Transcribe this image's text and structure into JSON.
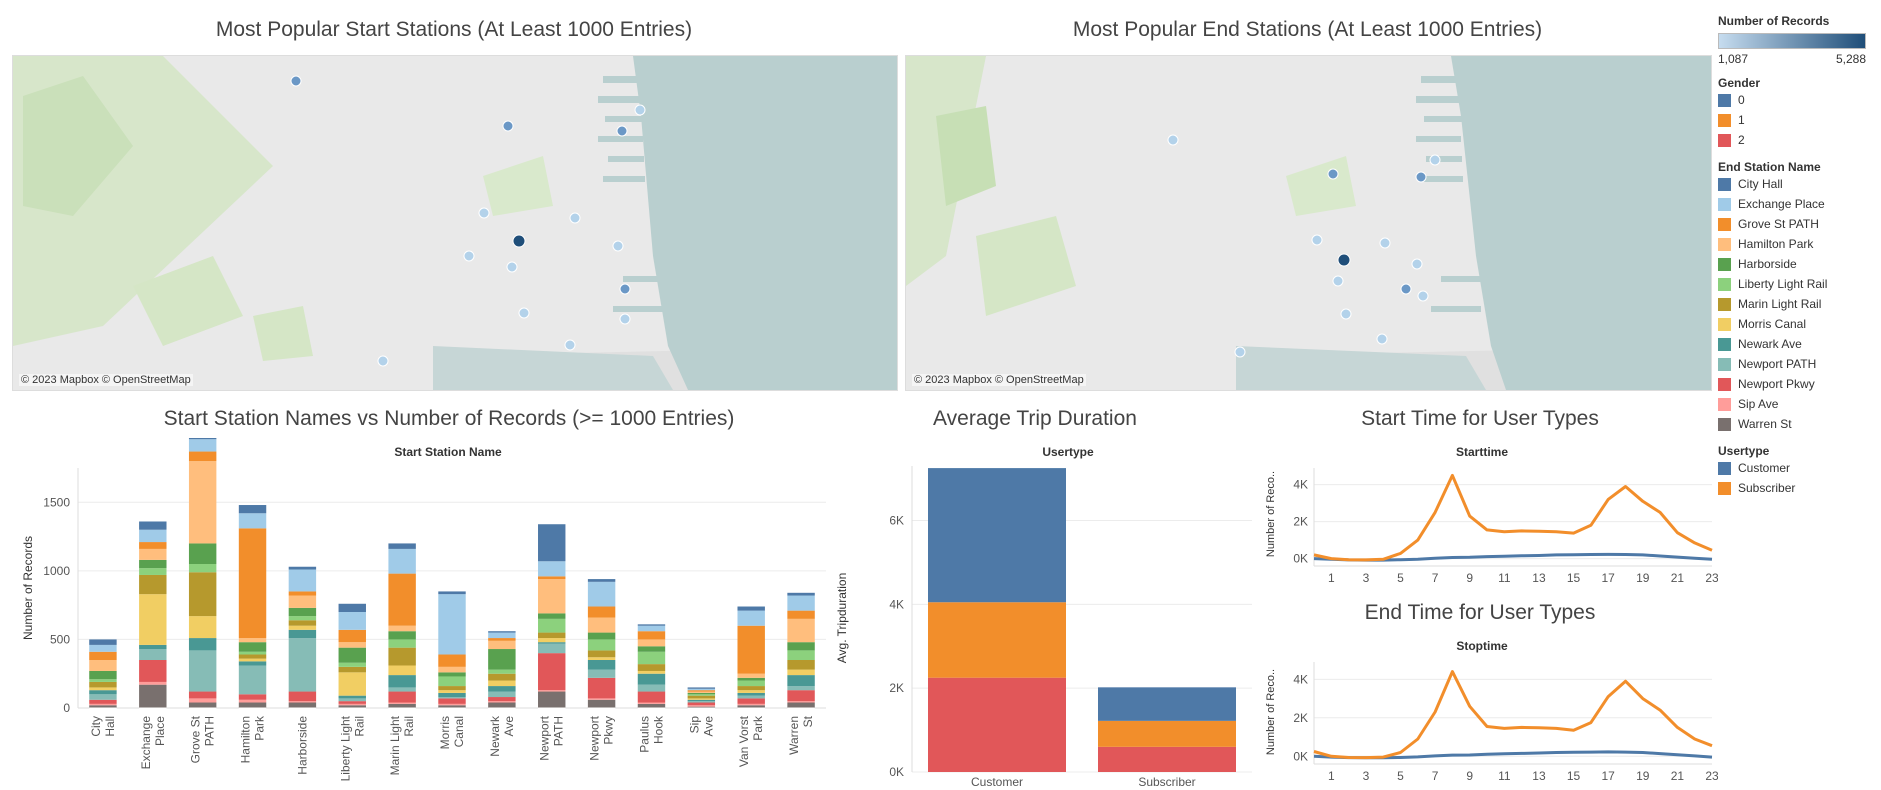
{
  "titles": {
    "start_map": "Most Popular Start Stations (At Least 1000  Entries)",
    "end_map": "Most Popular End Stations (At Least 1000  Entries)",
    "bar": "Start Station Names vs Number of Records (>= 1000 Entries)",
    "duration": "Average Trip Duration",
    "start_time": "Start Time for User Types",
    "end_time": "End Time for User Types"
  },
  "map_credit": "© 2023 Mapbox © OpenStreetMap",
  "legend": {
    "records_title": "Number of Records",
    "records_min": "1,087",
    "records_max": "5,288",
    "gender_title": "Gender",
    "gender": [
      {
        "label": "0",
        "color": "#4e79a7"
      },
      {
        "label": "1",
        "color": "#f28e2b"
      },
      {
        "label": "2",
        "color": "#e15759"
      }
    ],
    "station_title": "End Station Name",
    "stations": [
      {
        "label": "City Hall",
        "color": "#4e79a7"
      },
      {
        "label": "Exchange Place",
        "color": "#a0cbe8"
      },
      {
        "label": "Grove St PATH",
        "color": "#f28e2b"
      },
      {
        "label": "Hamilton Park",
        "color": "#ffbe7d"
      },
      {
        "label": "Harborside",
        "color": "#59a14f"
      },
      {
        "label": "Liberty Light Rail",
        "color": "#8cd17d"
      },
      {
        "label": "Marin Light Rail",
        "color": "#b6992d"
      },
      {
        "label": "Morris Canal",
        "color": "#f1ce63"
      },
      {
        "label": "Newark Ave",
        "color": "#499894"
      },
      {
        "label": "Newport PATH",
        "color": "#86bcb6"
      },
      {
        "label": "Newport Pkwy",
        "color": "#e15759"
      },
      {
        "label": "Sip Ave",
        "color": "#ff9d9a"
      },
      {
        "label": "Warren St",
        "color": "#79706e"
      }
    ],
    "usertype_title": "Usertype",
    "usertypes": [
      {
        "label": "Customer",
        "color": "#4e79a7"
      },
      {
        "label": "Subscriber",
        "color": "#f28e2b"
      }
    ]
  },
  "chart_data": [
    {
      "type": "map",
      "title": "Most Popular Start Stations (At Least 1000  Entries)",
      "marker_size_measure": "Number of Records"
    },
    {
      "type": "map",
      "title": "Most Popular End Stations (At Least 1000  Entries)",
      "marker_size_measure": "Number of Records"
    },
    {
      "type": "bar",
      "stacked": true,
      "title": "Start Station Names vs Number of Records (>= 1000 Entries)",
      "header": "Start Station Name",
      "ylabel": "Number of Records",
      "ylim": [
        0,
        1750
      ],
      "yticks": [
        0,
        500,
        1000,
        1500
      ],
      "categories": [
        "City Hall",
        "Exchange Place",
        "Grove St PATH",
        "Hamilton Park",
        "Harborside",
        "Liberty Light Rail",
        "Marin Light Rail",
        "Morris Canal",
        "Newark Ave",
        "Newport PATH",
        "Newport Pkwy",
        "Paulus Hook",
        "Sip Ave",
        "Van Vorst Park",
        "Warren St"
      ],
      "segment_order": [
        "Warren St",
        "Sip Ave",
        "Newport Pkwy",
        "Newport PATH",
        "Newark Ave",
        "Morris Canal",
        "Marin Light Rail",
        "Liberty Light Rail",
        "Harborside",
        "Hamilton Park",
        "Grove St PATH",
        "Exchange Place",
        "City Hall"
      ],
      "stacks": [
        [
          20,
          10,
          30,
          40,
          30,
          20,
          40,
          20,
          60,
          80,
          60,
          50,
          40
        ],
        [
          170,
          20,
          160,
          80,
          30,
          370,
          140,
          50,
          60,
          80,
          50,
          90,
          60
        ],
        [
          40,
          30,
          50,
          300,
          90,
          160,
          320,
          60,
          150,
          600,
          70,
          90,
          120
        ],
        [
          40,
          20,
          40,
          210,
          30,
          20,
          30,
          20,
          70,
          30,
          800,
          110,
          60
        ],
        [
          40,
          10,
          70,
          390,
          60,
          30,
          40,
          30,
          60,
          90,
          30,
          160,
          20
        ],
        [
          20,
          10,
          20,
          20,
          20,
          170,
          40,
          30,
          110,
          40,
          90,
          130,
          60
        ],
        [
          30,
          10,
          80,
          30,
          90,
          70,
          130,
          60,
          60,
          40,
          380,
          180,
          40
        ],
        [
          20,
          10,
          40,
          10,
          30,
          20,
          30,
          70,
          30,
          40,
          90,
          440,
          20
        ],
        [
          40,
          10,
          30,
          40,
          40,
          40,
          50,
          30,
          150,
          60,
          20,
          40,
          10
        ],
        [
          120,
          10,
          270,
          70,
          10,
          30,
          40,
          100,
          40,
          250,
          20,
          110,
          270
        ],
        [
          60,
          10,
          150,
          60,
          70,
          20,
          50,
          80,
          50,
          110,
          80,
          180,
          20
        ],
        [
          30,
          10,
          80,
          50,
          80,
          20,
          50,
          90,
          40,
          50,
          60,
          40,
          10
        ],
        [
          10,
          10,
          20,
          10,
          10,
          10,
          20,
          10,
          10,
          10,
          10,
          10,
          10
        ],
        [
          20,
          10,
          40,
          20,
          20,
          20,
          30,
          40,
          20,
          30,
          350,
          110,
          30
        ],
        [
          40,
          10,
          80,
          30,
          80,
          40,
          70,
          70,
          60,
          170,
          60,
          110,
          20
        ]
      ]
    },
    {
      "type": "bar",
      "stacked": true,
      "title": "Average Trip Duration",
      "header": "Usertype",
      "ylabel": "Avg. Tripduration",
      "ylim": [
        0,
        7300
      ],
      "yticks": [
        0,
        2000,
        4000,
        6000
      ],
      "ytick_labels": [
        "0K",
        "2K",
        "4K",
        "6K"
      ],
      "categories": [
        "Customer",
        "Subscriber"
      ],
      "series": [
        {
          "name": "2",
          "values": [
            2250,
            600
          ]
        },
        {
          "name": "1",
          "values": [
            1800,
            620
          ]
        },
        {
          "name": "0",
          "values": [
            3200,
            800
          ]
        }
      ]
    },
    {
      "type": "line",
      "title": "Start Time for User Types",
      "header": "Starttime",
      "ylabel": "Number of Reco..",
      "ylim": [
        -400,
        4900
      ],
      "yticks": [
        0,
        2000,
        4000
      ],
      "ytick_labels": [
        "0K",
        "2K",
        "4K"
      ],
      "xticks": [
        1,
        3,
        5,
        7,
        9,
        11,
        13,
        15,
        17,
        19,
        21,
        23
      ],
      "x": [
        0,
        1,
        2,
        3,
        4,
        5,
        6,
        7,
        8,
        9,
        10,
        11,
        12,
        13,
        14,
        15,
        16,
        17,
        18,
        19,
        20,
        21,
        22,
        23
      ],
      "series": [
        {
          "name": "Customer",
          "values": [
            0,
            -40,
            -70,
            -80,
            -80,
            -60,
            -30,
            20,
            60,
            70,
            110,
            130,
            150,
            170,
            200,
            210,
            220,
            230,
            220,
            200,
            140,
            80,
            20,
            -40
          ]
        },
        {
          "name": "Subscriber",
          "values": [
            200,
            0,
            -60,
            -70,
            -40,
            280,
            1000,
            2500,
            4500,
            2300,
            1550,
            1450,
            1500,
            1480,
            1450,
            1380,
            1800,
            3200,
            3900,
            3100,
            2500,
            1400,
            850,
            450
          ]
        }
      ]
    },
    {
      "type": "line",
      "title": "End Time for User Types",
      "header": "Stoptime",
      "ylabel": "Number of Reco..",
      "ylim": [
        -400,
        4900
      ],
      "yticks": [
        0,
        2000,
        4000
      ],
      "ytick_labels": [
        "0K",
        "2K",
        "4K"
      ],
      "xticks": [
        1,
        3,
        5,
        7,
        9,
        11,
        13,
        15,
        17,
        19,
        21,
        23
      ],
      "x": [
        0,
        1,
        2,
        3,
        4,
        5,
        6,
        7,
        8,
        9,
        10,
        11,
        12,
        13,
        14,
        15,
        16,
        17,
        18,
        19,
        20,
        21,
        22,
        23
      ],
      "series": [
        {
          "name": "Customer",
          "values": [
            0,
            -40,
            -70,
            -80,
            -80,
            -60,
            -30,
            20,
            60,
            70,
            110,
            130,
            150,
            170,
            200,
            210,
            220,
            230,
            220,
            200,
            140,
            80,
            20,
            -40
          ]
        },
        {
          "name": "Subscriber",
          "values": [
            250,
            0,
            -60,
            -70,
            -40,
            200,
            900,
            2300,
            4400,
            2600,
            1550,
            1450,
            1500,
            1480,
            1450,
            1350,
            1750,
            3100,
            3900,
            3000,
            2400,
            1500,
            900,
            550
          ]
        }
      ]
    }
  ]
}
